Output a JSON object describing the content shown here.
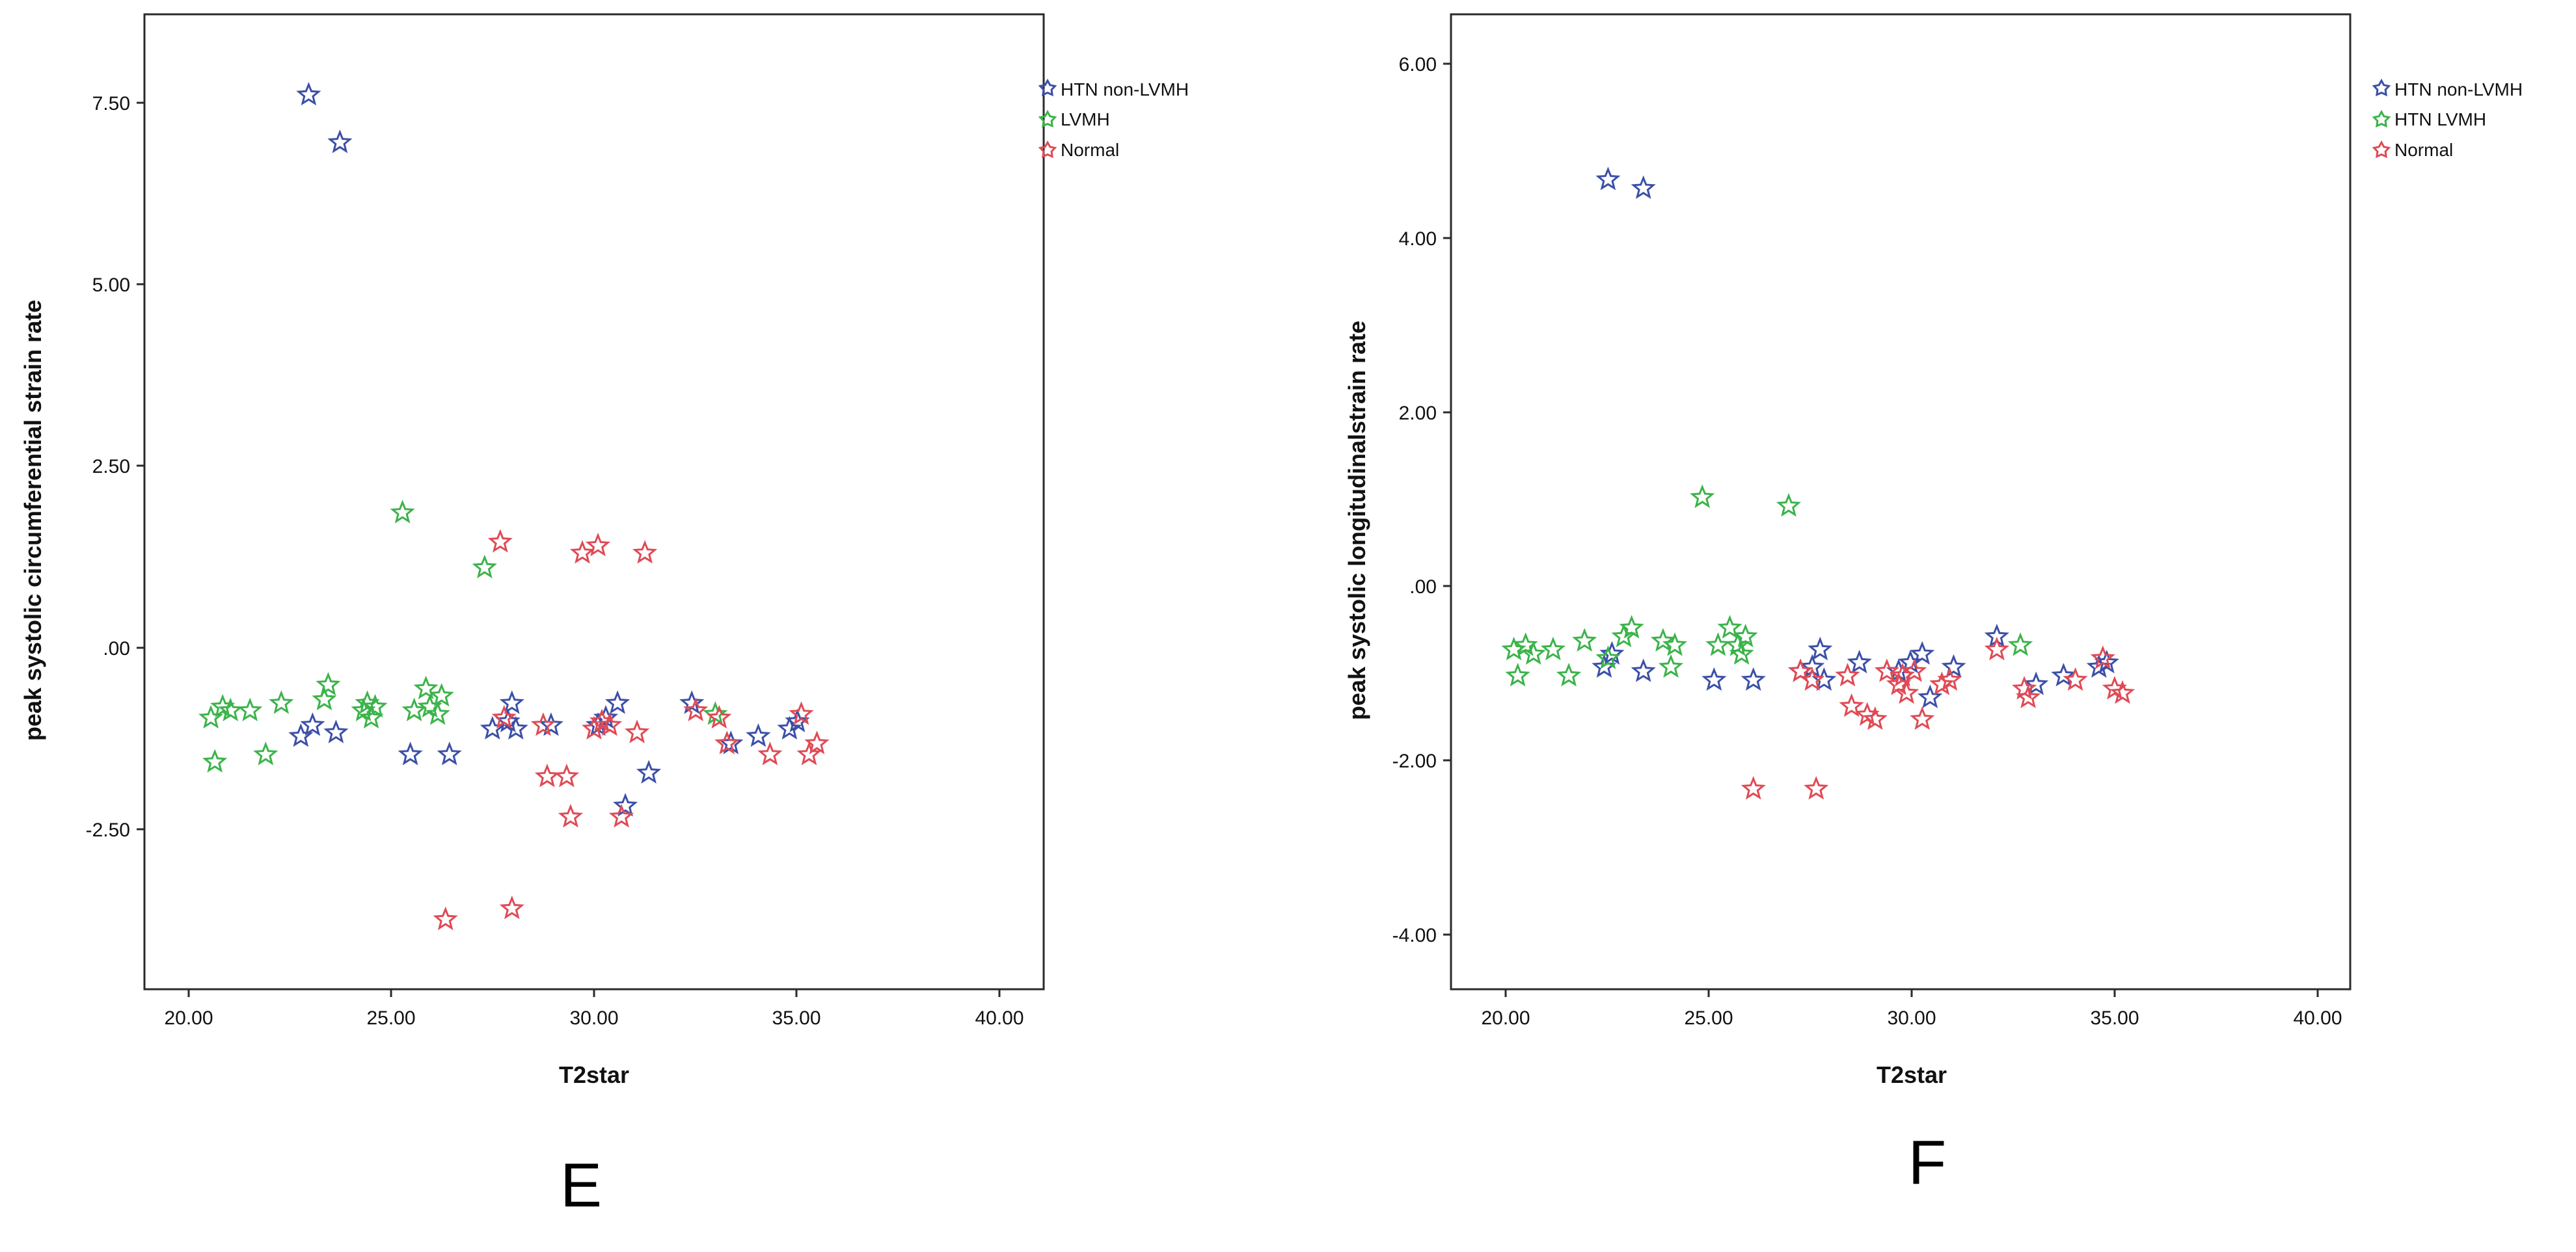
{
  "chart_data": [
    {
      "type": "scatter",
      "panel_label": "E",
      "xlabel": "T2star",
      "ylabel": "peak systolic circumferential strain rate",
      "xlim": [
        18.5,
        41.5
      ],
      "ylim": [
        -4.6,
        8.7
      ],
      "x_ticks": [
        20,
        25,
        30,
        35,
        40
      ],
      "x_tick_labels": [
        "20.00",
        "25.00",
        "30.00",
        "35.00",
        "40.00"
      ],
      "y_ticks": [
        7.5,
        5,
        2.5,
        0,
        -2.5
      ],
      "y_tick_labels": [
        "7.50",
        "5.00",
        "2.50",
        ".00",
        "-2.50"
      ],
      "grid": false,
      "legend_position": "top-right",
      "series": [
        {
          "name": "HTN non-LVMH",
          "color": "#3c4fa8",
          "points": [
            [
              22.7,
              7.6
            ],
            [
              23.5,
              6.95
            ],
            [
              22.5,
              -1.15
            ],
            [
              22.8,
              -1.0
            ],
            [
              23.4,
              -1.1
            ],
            [
              25.3,
              -1.4
            ],
            [
              26.3,
              -1.4
            ],
            [
              27.4,
              -1.05
            ],
            [
              27.8,
              -0.95
            ],
            [
              27.9,
              -0.7
            ],
            [
              28.0,
              -1.05
            ],
            [
              28.9,
              -1.0
            ],
            [
              30.1,
              -1.0
            ],
            [
              30.3,
              -0.9
            ],
            [
              30.6,
              -0.7
            ],
            [
              30.8,
              -2.1
            ],
            [
              31.4,
              -1.65
            ],
            [
              32.5,
              -0.7
            ],
            [
              33.5,
              -1.25
            ],
            [
              34.2,
              -1.15
            ],
            [
              35.0,
              -1.05
            ],
            [
              35.2,
              -0.95
            ]
          ]
        },
        {
          "name": "LVMH",
          "color": "#3cb34a",
          "points": [
            [
              20.2,
              -0.9
            ],
            [
              20.3,
              -1.5
            ],
            [
              20.5,
              -0.75
            ],
            [
              20.7,
              -0.8
            ],
            [
              21.2,
              -0.8
            ],
            [
              21.6,
              -1.4
            ],
            [
              22.0,
              -0.7
            ],
            [
              23.1,
              -0.65
            ],
            [
              23.2,
              -0.45
            ],
            [
              24.1,
              -0.8
            ],
            [
              24.2,
              -0.7
            ],
            [
              24.4,
              -0.75
            ],
            [
              24.3,
              -0.9
            ],
            [
              25.1,
              1.9
            ],
            [
              25.4,
              -0.8
            ],
            [
              25.7,
              -0.5
            ],
            [
              25.8,
              -0.75
            ],
            [
              26.0,
              -0.85
            ],
            [
              26.1,
              -0.6
            ],
            [
              27.2,
              1.15
            ],
            [
              33.1,
              -0.85
            ]
          ]
        },
        {
          "name": "Normal",
          "color": "#e04a55",
          "points": [
            [
              26.2,
              -3.65
            ],
            [
              27.6,
              1.5
            ],
            [
              27.7,
              -0.9
            ],
            [
              27.9,
              -3.5
            ],
            [
              28.7,
              -1.0
            ],
            [
              28.8,
              -1.7
            ],
            [
              29.3,
              -1.7
            ],
            [
              29.4,
              -2.25
            ],
            [
              29.7,
              1.35
            ],
            [
              30.0,
              -1.05
            ],
            [
              30.1,
              1.45
            ],
            [
              30.2,
              -0.95
            ],
            [
              30.4,
              -1.0
            ],
            [
              30.7,
              -2.25
            ],
            [
              31.1,
              -1.1
            ],
            [
              31.3,
              1.35
            ],
            [
              32.6,
              -0.8
            ],
            [
              33.2,
              -0.9
            ],
            [
              33.4,
              -1.25
            ],
            [
              34.5,
              -1.4
            ],
            [
              35.3,
              -0.85
            ],
            [
              35.5,
              -1.4
            ],
            [
              35.7,
              -1.25
            ]
          ]
        }
      ]
    },
    {
      "type": "scatter",
      "panel_label": "F",
      "xlabel": "T2star",
      "ylabel": "peak systolic  longitudinalstrain rate",
      "xlim": [
        18.6,
        41.5
      ],
      "ylim": [
        -4.6,
        6.6
      ],
      "x_ticks": [
        20,
        25,
        30,
        35,
        40
      ],
      "x_tick_labels": [
        "20.00",
        "25.00",
        "30.00",
        "35.00",
        "40.00"
      ],
      "y_ticks": [
        6,
        4,
        2,
        0,
        -2,
        -4
      ],
      "y_tick_labels": [
        "6.00",
        "4.00",
        "2.00",
        ".00",
        "-2.00",
        "-4.00"
      ],
      "grid": false,
      "legend_position": "top-right",
      "series": [
        {
          "name": "HTN non-LVMH",
          "color": "#3c4fa8",
          "points": [
            [
              22.6,
              4.7
            ],
            [
              23.5,
              4.6
            ],
            [
              22.5,
              -0.9
            ],
            [
              22.7,
              -0.75
            ],
            [
              23.5,
              -0.95
            ],
            [
              25.3,
              -1.05
            ],
            [
              26.3,
              -1.05
            ],
            [
              27.5,
              -0.95
            ],
            [
              27.8,
              -0.9
            ],
            [
              28.0,
              -0.7
            ],
            [
              28.1,
              -1.05
            ],
            [
              29.0,
              -0.85
            ],
            [
              30.0,
              -0.95
            ],
            [
              30.3,
              -0.85
            ],
            [
              30.6,
              -0.75
            ],
            [
              30.8,
              -1.25
            ],
            [
              31.4,
              -0.9
            ],
            [
              32.5,
              -0.55
            ],
            [
              33.5,
              -1.1
            ],
            [
              34.2,
              -1.0
            ],
            [
              35.1,
              -0.9
            ],
            [
              35.3,
              -0.85
            ]
          ]
        },
        {
          "name": "HTN LVMH",
          "color": "#3cb34a",
          "points": [
            [
              20.2,
              -0.7
            ],
            [
              20.3,
              -1.0
            ],
            [
              20.5,
              -0.65
            ],
            [
              20.7,
              -0.75
            ],
            [
              21.2,
              -0.7
            ],
            [
              21.6,
              -1.0
            ],
            [
              22.0,
              -0.6
            ],
            [
              22.6,
              -0.8
            ],
            [
              23.0,
              -0.55
            ],
            [
              23.2,
              -0.45
            ],
            [
              24.0,
              -0.6
            ],
            [
              24.2,
              -0.9
            ],
            [
              24.3,
              -0.65
            ],
            [
              25.0,
              1.05
            ],
            [
              25.4,
              -0.65
            ],
            [
              25.7,
              -0.45
            ],
            [
              25.9,
              -0.65
            ],
            [
              26.0,
              -0.75
            ],
            [
              26.1,
              -0.55
            ],
            [
              27.2,
              0.95
            ],
            [
              33.1,
              -0.65
            ]
          ]
        },
        {
          "name": "Normal",
          "color": "#e04a55",
          "points": [
            [
              26.3,
              -2.3
            ],
            [
              27.5,
              -0.95
            ],
            [
              27.8,
              -1.05
            ],
            [
              27.9,
              -2.3
            ],
            [
              28.7,
              -1.0
            ],
            [
              28.8,
              -1.35
            ],
            [
              29.2,
              -1.45
            ],
            [
              29.4,
              -1.5
            ],
            [
              29.7,
              -0.95
            ],
            [
              30.0,
              -1.1
            ],
            [
              30.1,
              -1.0
            ],
            [
              30.2,
              -1.2
            ],
            [
              30.4,
              -0.95
            ],
            [
              30.6,
              -1.5
            ],
            [
              31.1,
              -1.1
            ],
            [
              31.3,
              -1.05
            ],
            [
              32.5,
              -0.7
            ],
            [
              33.2,
              -1.15
            ],
            [
              33.3,
              -1.25
            ],
            [
              34.5,
              -1.05
            ],
            [
              35.2,
              -0.8
            ],
            [
              35.5,
              -1.15
            ],
            [
              35.7,
              -1.2
            ]
          ]
        }
      ]
    }
  ]
}
